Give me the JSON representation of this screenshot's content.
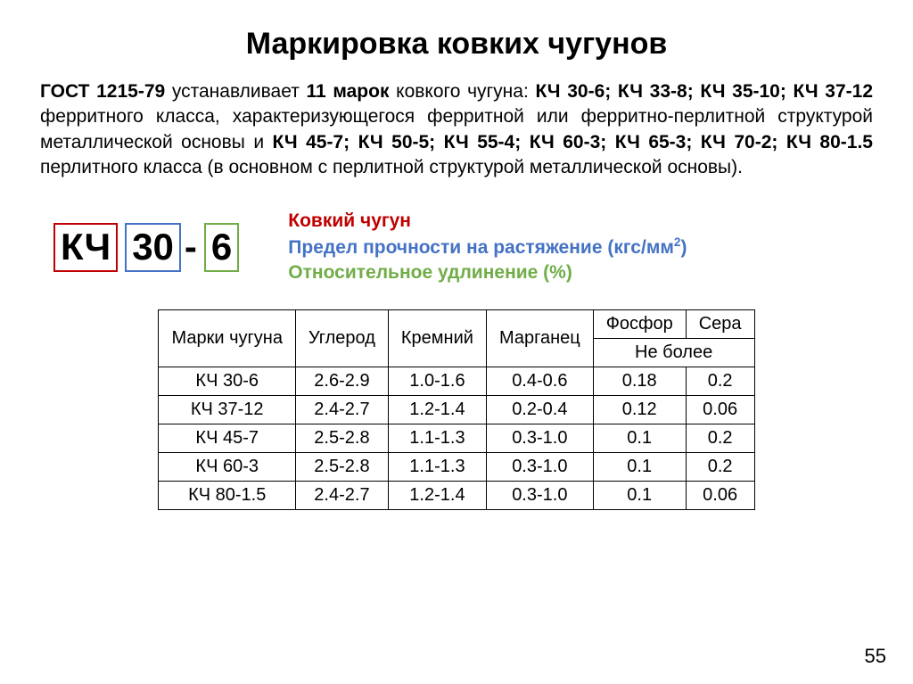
{
  "colors": {
    "red": "#c00000",
    "blue": "#4472c4",
    "green": "#70ad47",
    "black": "#000000"
  },
  "title": "Маркировка ковких чугунов",
  "para": {
    "pieces": [
      {
        "t": "ГОСТ 1215-79",
        "b": true
      },
      {
        "t": " устанавливает ",
        "b": false
      },
      {
        "t": "11 марок",
        "b": true
      },
      {
        "t": " ковкого чугуна: ",
        "b": false
      },
      {
        "t": "КЧ 30-6; КЧ 33-8; КЧ 35-10; КЧ 37-12",
        "b": true
      },
      {
        "t": " ферритного класса, характеризующегося ферритной или ферритно-перлитной структурой металлической основы и ",
        "b": false
      },
      {
        "t": "КЧ 45-7; КЧ 50-5; КЧ 55-4; КЧ 60-3; КЧ 65-3; КЧ 70-2; КЧ 80-1.5",
        "b": true
      },
      {
        "t": " перлитного класса (в основном с перлитной структурой металлической основы).",
        "b": false
      }
    ]
  },
  "marking": {
    "p1": "КЧ",
    "p2": "30",
    "dash": "-",
    "p3": "6"
  },
  "legend": {
    "red": "Ковкий чугун",
    "blue_prefix": "Предел прочности на растяжение (кгс/мм",
    "blue_sup": "2",
    "blue_suffix": ")",
    "green": "Относительное удлинение (%)"
  },
  "table": {
    "head": {
      "grade": "Марки чугуна",
      "c": "Углерод",
      "si": "Кремний",
      "mn": "Марганец",
      "p": "Фосфор",
      "s": "Сера",
      "nomore": "Не более"
    },
    "rows": [
      {
        "g": "КЧ 30-6",
        "c": "2.6-2.9",
        "si": "1.0-1.6",
        "mn": "0.4-0.6",
        "p": "0.18",
        "s": "0.2"
      },
      {
        "g": "КЧ 37-12",
        "c": "2.4-2.7",
        "si": "1.2-1.4",
        "mn": "0.2-0.4",
        "p": "0.12",
        "s": "0.06"
      },
      {
        "g": "КЧ 45-7",
        "c": "2.5-2.8",
        "si": "1.1-1.3",
        "mn": "0.3-1.0",
        "p": "0.1",
        "s": "0.2"
      },
      {
        "g": "КЧ 60-3",
        "c": "2.5-2.8",
        "si": "1.1-1.3",
        "mn": "0.3-1.0",
        "p": "0.1",
        "s": "0.2"
      },
      {
        "g": "КЧ 80-1.5",
        "c": "2.4-2.7",
        "si": "1.2-1.4",
        "mn": "0.3-1.0",
        "p": "0.1",
        "s": "0.06"
      }
    ]
  },
  "pagenum": "55"
}
